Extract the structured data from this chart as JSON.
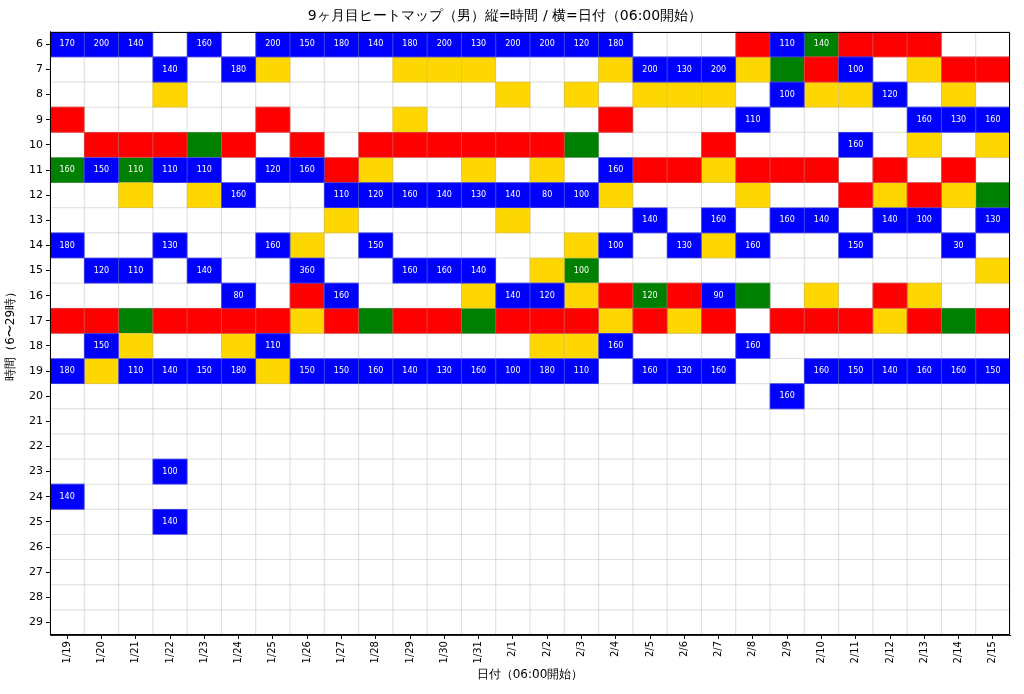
{
  "chart_data": {
    "type": "scatter",
    "title": "9ヶ月目ヒートマップ（男）縦=時間 / 横=日付（06:00開始）",
    "xlabel": "日付（06:00開始）",
    "ylabel": "時間（6〜29時）",
    "categories": [
      "1/19",
      "1/20",
      "1/21",
      "1/22",
      "1/23",
      "1/24",
      "1/25",
      "1/26",
      "1/27",
      "1/28",
      "1/29",
      "1/30",
      "1/31",
      "2/1",
      "2/2",
      "2/3",
      "2/4",
      "2/5",
      "2/6",
      "2/7",
      "2/8",
      "2/9",
      "2/10",
      "2/11",
      "2/12",
      "2/13",
      "2/14",
      "2/15"
    ],
    "ylim": [
      29.5,
      5.5
    ],
    "yticks": [
      6,
      7,
      8,
      9,
      10,
      11,
      12,
      13,
      14,
      15,
      16,
      17,
      18,
      19,
      20,
      21,
      22,
      23,
      24,
      25,
      26,
      27,
      28,
      29
    ],
    "marker": "square",
    "grid": true,
    "series": [
      {
        "color": "#0000ff",
        "x": [
          "1/19",
          "1/20",
          "1/21",
          "1/23",
          "1/25",
          "1/26",
          "1/27",
          "1/28",
          "1/29",
          "1/30",
          "1/31",
          "2/1",
          "2/2",
          "2/3",
          "2/4",
          "2/9",
          "1/22",
          "1/24",
          "2/5",
          "2/6",
          "2/7",
          "2/11",
          "2/9",
          "2/12",
          "2/8",
          "2/13",
          "2/14",
          "2/15",
          "2/11",
          "1/20",
          "1/22",
          "1/23",
          "1/25",
          "1/26",
          "2/4",
          "1/24",
          "1/27",
          "1/28",
          "1/29",
          "1/30",
          "1/31",
          "2/1",
          "2/2",
          "2/3",
          "2/5",
          "2/7",
          "2/9",
          "2/10",
          "2/12",
          "2/13",
          "2/15",
          "1/19",
          "1/22",
          "1/25",
          "1/28",
          "2/4",
          "2/6",
          "2/8",
          "2/11",
          "2/14",
          "1/20",
          "1/21",
          "1/23",
          "1/26",
          "1/29",
          "1/30",
          "1/31",
          "1/24",
          "1/27",
          "2/1",
          "2/2",
          "2/7",
          "1/20",
          "1/25",
          "2/4",
          "2/8",
          "1/19",
          "1/21",
          "1/22",
          "1/23",
          "1/24",
          "1/26",
          "1/27",
          "1/28",
          "1/29",
          "1/30",
          "1/31",
          "2/1",
          "2/2",
          "2/3",
          "2/5",
          "2/6",
          "2/7",
          "2/10",
          "2/11",
          "2/12",
          "2/13",
          "2/14",
          "2/15",
          "2/9",
          "1/22",
          "1/19",
          "1/22"
        ],
        "values": [
          6,
          6,
          6,
          6,
          6,
          6,
          6,
          6,
          6,
          6,
          6,
          6,
          6,
          6,
          6,
          6,
          7,
          7,
          7,
          7,
          7,
          7,
          8,
          8,
          9,
          9,
          9,
          9,
          10,
          11,
          11,
          11,
          11,
          11,
          11,
          12,
          12,
          12,
          12,
          12,
          12,
          12,
          12,
          12,
          13,
          13,
          13,
          13,
          13,
          13,
          13,
          14,
          14,
          14,
          14,
          14,
          14,
          14,
          14,
          14,
          15,
          15,
          15,
          15,
          15,
          15,
          15,
          16,
          16,
          16,
          16,
          16,
          18,
          18,
          18,
          18,
          19,
          19,
          19,
          19,
          19,
          19,
          19,
          19,
          19,
          19,
          19,
          19,
          19,
          19,
          19,
          19,
          19,
          19,
          19,
          19,
          19,
          19,
          19,
          20,
          23,
          24,
          25
        ]
      },
      {
        "color": "#ff0000",
        "x": [
          "2/8",
          "2/11",
          "2/12",
          "2/13",
          "2/10",
          "2/14",
          "2/15",
          "1/19",
          "1/25",
          "2/4",
          "1/20",
          "1/21",
          "1/22",
          "1/24",
          "1/26",
          "1/28",
          "1/29",
          "1/30",
          "1/31",
          "2/1",
          "2/2",
          "2/7",
          "1/27",
          "2/5",
          "2/6",
          "2/8",
          "2/9",
          "2/10",
          "2/12",
          "2/14",
          "2/11",
          "2/13",
          "1/26",
          "2/4",
          "2/6",
          "2/12",
          "1/19",
          "1/20",
          "1/22",
          "1/23",
          "1/24",
          "1/25",
          "1/27",
          "1/29",
          "1/30",
          "2/1",
          "2/2",
          "2/3",
          "2/5",
          "2/7",
          "2/9",
          "2/10",
          "2/11",
          "2/13",
          "2/15"
        ],
        "values": [
          6,
          6,
          6,
          6,
          7,
          7,
          7,
          9,
          9,
          9,
          10,
          10,
          10,
          10,
          10,
          10,
          10,
          10,
          10,
          10,
          10,
          10,
          11,
          11,
          11,
          11,
          11,
          11,
          11,
          11,
          12,
          12,
          16,
          16,
          16,
          16,
          17,
          17,
          17,
          17,
          17,
          17,
          17,
          17,
          17,
          17,
          17,
          17,
          17,
          17,
          17,
          17,
          17,
          17,
          17
        ]
      },
      {
        "color": "#ffd700",
        "x": [
          "1/25",
          "1/29",
          "1/30",
          "1/31",
          "2/4",
          "2/8",
          "2/13",
          "1/22",
          "2/1",
          "2/3",
          "2/5",
          "2/6",
          "2/7",
          "2/10",
          "2/11",
          "2/14",
          "1/29",
          "2/13",
          "2/15",
          "1/28",
          "1/31",
          "2/2",
          "2/7",
          "1/21",
          "1/23",
          "2/4",
          "2/8",
          "2/12",
          "2/14",
          "1/27",
          "2/1",
          "1/26",
          "2/3",
          "2/7",
          "2/2",
          "2/15",
          "1/31",
          "2/3",
          "2/10",
          "2/13",
          "1/26",
          "2/4",
          "2/6",
          "2/12",
          "1/21",
          "1/24",
          "2/2",
          "2/3",
          "1/20",
          "1/25"
        ],
        "values": [
          7,
          7,
          7,
          7,
          7,
          7,
          7,
          8,
          8,
          8,
          8,
          8,
          8,
          8,
          8,
          8,
          9,
          10,
          10,
          11,
          11,
          11,
          11,
          12,
          12,
          12,
          12,
          12,
          12,
          13,
          13,
          14,
          14,
          14,
          15,
          15,
          16,
          16,
          16,
          16,
          17,
          17,
          17,
          17,
          18,
          18,
          18,
          18,
          19,
          19
        ]
      },
      {
        "color": "#008000",
        "x": [
          "2/10",
          "2/9",
          "1/23",
          "2/3",
          "1/19",
          "1/21",
          "2/15",
          "2/3",
          "2/5",
          "2/8",
          "1/21",
          "1/28",
          "1/31",
          "2/14"
        ],
        "values": [
          6,
          7,
          10,
          10,
          11,
          11,
          12,
          15,
          16,
          16,
          17,
          17,
          17,
          17
        ]
      }
    ],
    "annotations": [
      {
        "text": "170",
        "x": "1/19",
        "y": 6
      },
      {
        "text": "200",
        "x": "1/20",
        "y": 6
      },
      {
        "text": "140",
        "x": "1/21",
        "y": 6
      },
      {
        "text": "160",
        "x": "1/23",
        "y": 6
      },
      {
        "text": "200",
        "x": "1/25",
        "y": 6
      },
      {
        "text": "150",
        "x": "1/26",
        "y": 6
      },
      {
        "text": "180",
        "x": "1/27",
        "y": 6
      },
      {
        "text": "140",
        "x": "1/28",
        "y": 6
      },
      {
        "text": "180",
        "x": "1/29",
        "y": 6
      },
      {
        "text": "200",
        "x": "1/30",
        "y": 6
      },
      {
        "text": "130",
        "x": "1/31",
        "y": 6
      },
      {
        "text": "200",
        "x": "2/1",
        "y": 6
      },
      {
        "text": "200",
        "x": "2/2",
        "y": 6
      },
      {
        "text": "120",
        "x": "2/3",
        "y": 6
      },
      {
        "text": "180",
        "x": "2/4",
        "y": 6
      },
      {
        "text": "110",
        "x": "2/9",
        "y": 6
      },
      {
        "text": "140",
        "x": "2/10",
        "y": 6
      },
      {
        "text": "140",
        "x": "1/22",
        "y": 7
      },
      {
        "text": "180",
        "x": "1/24",
        "y": 7
      },
      {
        "text": "200",
        "x": "2/5",
        "y": 7
      },
      {
        "text": "130",
        "x": "2/6",
        "y": 7
      },
      {
        "text": "200",
        "x": "2/7",
        "y": 7
      },
      {
        "text": "100",
        "x": "2/11",
        "y": 7
      },
      {
        "text": "100",
        "x": "2/9",
        "y": 8
      },
      {
        "text": "120",
        "x": "2/12",
        "y": 8
      },
      {
        "text": "110",
        "x": "2/8",
        "y": 9
      },
      {
        "text": "160",
        "x": "2/13",
        "y": 9
      },
      {
        "text": "130",
        "x": "2/14",
        "y": 9
      },
      {
        "text": "160",
        "x": "2/15",
        "y": 9
      },
      {
        "text": "160",
        "x": "2/11",
        "y": 10
      },
      {
        "text": "160",
        "x": "1/19",
        "y": 11
      },
      {
        "text": "150",
        "x": "1/20",
        "y": 11
      },
      {
        "text": "110",
        "x": "1/21",
        "y": 11
      },
      {
        "text": "110",
        "x": "1/22",
        "y": 11
      },
      {
        "text": "110",
        "x": "1/23",
        "y": 11
      },
      {
        "text": "120",
        "x": "1/25",
        "y": 11
      },
      {
        "text": "160",
        "x": "1/26",
        "y": 11
      },
      {
        "text": "160",
        "x": "2/4",
        "y": 11
      },
      {
        "text": "160",
        "x": "1/24",
        "y": 12
      },
      {
        "text": "110",
        "x": "1/27",
        "y": 12
      },
      {
        "text": "120",
        "x": "1/28",
        "y": 12
      },
      {
        "text": "160",
        "x": "1/29",
        "y": 12
      },
      {
        "text": "140",
        "x": "1/30",
        "y": 12
      },
      {
        "text": "130",
        "x": "1/31",
        "y": 12
      },
      {
        "text": "140",
        "x": "2/1",
        "y": 12
      },
      {
        "text": "80",
        "x": "2/2",
        "y": 12
      },
      {
        "text": "100",
        "x": "2/3",
        "y": 12
      },
      {
        "text": "140",
        "x": "2/5",
        "y": 13
      },
      {
        "text": "160",
        "x": "2/7",
        "y": 13
      },
      {
        "text": "160",
        "x": "2/9",
        "y": 13
      },
      {
        "text": "140",
        "x": "2/10",
        "y": 13
      },
      {
        "text": "140",
        "x": "2/12",
        "y": 13
      },
      {
        "text": "100",
        "x": "2/13",
        "y": 13
      },
      {
        "text": "130",
        "x": "2/15",
        "y": 13
      },
      {
        "text": "180",
        "x": "1/19",
        "y": 14
      },
      {
        "text": "130",
        "x": "1/22",
        "y": 14
      },
      {
        "text": "160",
        "x": "1/25",
        "y": 14
      },
      {
        "text": "150",
        "x": "1/28",
        "y": 14
      },
      {
        "text": "100",
        "x": "2/4",
        "y": 14
      },
      {
        "text": "130",
        "x": "2/6",
        "y": 14
      },
      {
        "text": "160",
        "x": "2/8",
        "y": 14
      },
      {
        "text": "150",
        "x": "2/11",
        "y": 14
      },
      {
        "text": "30",
        "x": "2/14",
        "y": 14
      },
      {
        "text": "120",
        "x": "1/20",
        "y": 15
      },
      {
        "text": "110",
        "x": "1/21",
        "y": 15
      },
      {
        "text": "140",
        "x": "1/23",
        "y": 15
      },
      {
        "text": "360",
        "x": "1/26",
        "y": 15
      },
      {
        "text": "160",
        "x": "1/29",
        "y": 15
      },
      {
        "text": "160",
        "x": "1/30",
        "y": 15
      },
      {
        "text": "140",
        "x": "1/31",
        "y": 15
      },
      {
        "text": "100",
        "x": "2/3",
        "y": 15
      },
      {
        "text": "80",
        "x": "1/24",
        "y": 16
      },
      {
        "text": "160",
        "x": "1/27",
        "y": 16
      },
      {
        "text": "140",
        "x": "2/1",
        "y": 16
      },
      {
        "text": "120",
        "x": "2/2",
        "y": 16
      },
      {
        "text": "120",
        "x": "2/5",
        "y": 16
      },
      {
        "text": "90",
        "x": "2/7",
        "y": 16
      },
      {
        "text": "150",
        "x": "1/20",
        "y": 18
      },
      {
        "text": "110",
        "x": "1/25",
        "y": 18
      },
      {
        "text": "160",
        "x": "2/4",
        "y": 18
      },
      {
        "text": "160",
        "x": "2/8",
        "y": 18
      },
      {
        "text": "180",
        "x": "1/19",
        "y": 19
      },
      {
        "text": "110",
        "x": "1/21",
        "y": 19
      },
      {
        "text": "140",
        "x": "1/22",
        "y": 19
      },
      {
        "text": "150",
        "x": "1/23",
        "y": 19
      },
      {
        "text": "180",
        "x": "1/24",
        "y": 19
      },
      {
        "text": "150",
        "x": "1/26",
        "y": 19
      },
      {
        "text": "150",
        "x": "1/27",
        "y": 19
      },
      {
        "text": "160",
        "x": "1/28",
        "y": 19
      },
      {
        "text": "140",
        "x": "1/29",
        "y": 19
      },
      {
        "text": "130",
        "x": "1/30",
        "y": 19
      },
      {
        "text": "160",
        "x": "1/31",
        "y": 19
      },
      {
        "text": "100",
        "x": "2/1",
        "y": 19
      },
      {
        "text": "180",
        "x": "2/2",
        "y": 19
      },
      {
        "text": "110",
        "x": "2/3",
        "y": 19
      },
      {
        "text": "160",
        "x": "2/5",
        "y": 19
      },
      {
        "text": "130",
        "x": "2/6",
        "y": 19
      },
      {
        "text": "160",
        "x": "2/7",
        "y": 19
      },
      {
        "text": "160",
        "x": "2/10",
        "y": 19
      },
      {
        "text": "150",
        "x": "2/11",
        "y": 19
      },
      {
        "text": "140",
        "x": "2/12",
        "y": 19
      },
      {
        "text": "160",
        "x": "2/13",
        "y": 19
      },
      {
        "text": "160",
        "x": "2/14",
        "y": 19
      },
      {
        "text": "150",
        "x": "2/15",
        "y": 19
      },
      {
        "text": "160",
        "x": "2/9",
        "y": 20
      },
      {
        "text": "100",
        "x": "1/22",
        "y": 23
      },
      {
        "text": "140",
        "x": "1/19",
        "y": 24
      },
      {
        "text": "140",
        "x": "1/22",
        "y": 25
      }
    ]
  }
}
